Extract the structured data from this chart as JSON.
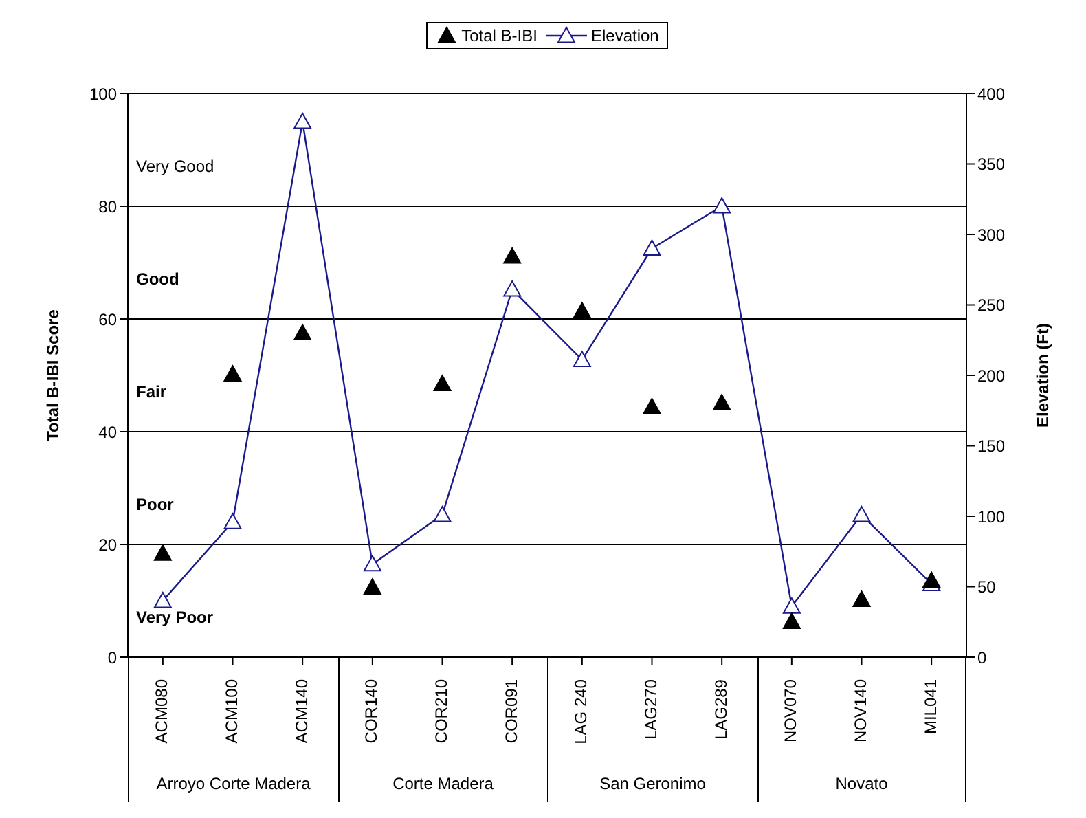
{
  "chart_data": {
    "type": "scatter",
    "categories": [
      "ACM080",
      "ACM100",
      "ACM140",
      "COR140",
      "COR210",
      "COR091",
      "LAG 240",
      "LAG270",
      "LAG289",
      "NOV070",
      "NOV140",
      "MIL041"
    ],
    "series": [
      {
        "name": "Total B-IBI",
        "color": "#000000",
        "marker": "triangle",
        "values": [
          18.4,
          50.2,
          57.5,
          12.4,
          48.5,
          71.1,
          61.4,
          44.4,
          45.1,
          6.3,
          10.2,
          13.6
        ]
      },
      {
        "name": "Elevation",
        "type": "line",
        "axis": "y2",
        "color": "#1a1a8c",
        "marker": "triangle",
        "values": [
          40,
          96,
          380,
          66,
          101,
          261,
          211,
          290,
          320,
          36,
          101,
          52
        ]
      }
    ],
    "ylabel": "Total B-IBI Score",
    "y2label": "Elevation (Ft)",
    "ylim": [
      0,
      100
    ],
    "yticks": [
      0,
      20,
      40,
      60,
      80,
      100
    ],
    "y2lim": [
      0,
      400
    ],
    "y2ticks": [
      0,
      50,
      100,
      150,
      200,
      250,
      300,
      350,
      400
    ],
    "grid": "y",
    "legend": "top",
    "annotations": [
      "Very Good",
      "Good",
      "Fair",
      "Poor",
      "Very Poor",
      "Arroyo Corte Madera",
      "Corte Madera",
      "San Geronimo",
      "Novato"
    ]
  }
}
